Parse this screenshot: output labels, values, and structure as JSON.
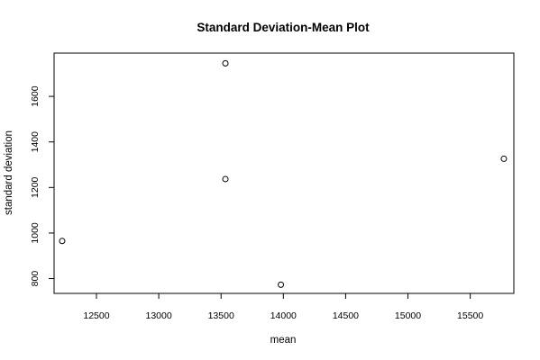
{
  "chart_data": {
    "type": "scatter",
    "title": "Standard Deviation-Mean Plot",
    "xlabel": "mean",
    "ylabel": "standard deviation",
    "xlim": [
      12160,
      15850
    ],
    "ylim": [
      735,
      1790
    ],
    "xticks": [
      12500,
      13000,
      13500,
      14000,
      14500,
      15000,
      15500
    ],
    "yticks": [
      800,
      1000,
      1200,
      1400,
      1600
    ],
    "grid": false,
    "marker": "open-circle",
    "points": [
      {
        "x": 12225,
        "y": 965
      },
      {
        "x": 13535,
        "y": 1745
      },
      {
        "x": 13535,
        "y": 1237
      },
      {
        "x": 13980,
        "y": 773
      },
      {
        "x": 15770,
        "y": 1326
      }
    ]
  }
}
